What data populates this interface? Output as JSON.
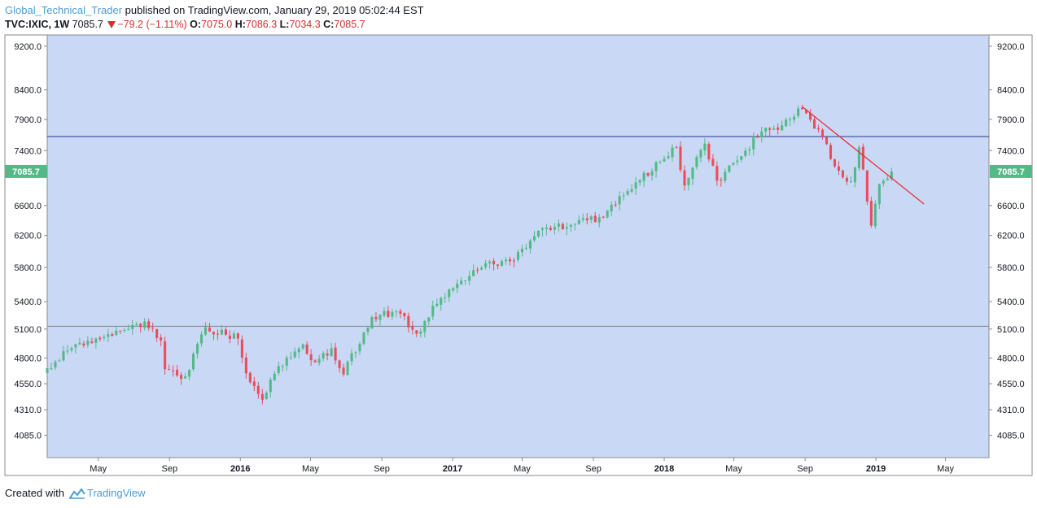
{
  "header": {
    "author": "Global_Technical_Trader",
    "published": "published on TradingView.com, January 29, 2019 05:02:44 EST",
    "symbol": "TVC:IXIC, 1W",
    "last": "7085.7",
    "change": "−79.2 (−1.11%)",
    "o_label": "O:",
    "o_value": "7075.0",
    "h_label": "H:",
    "h_value": "7086.3",
    "l_label": "L:",
    "l_value": "7034.3",
    "c_label": "C:",
    "c_value": "7085.7"
  },
  "footer": {
    "created_with": "Created with",
    "brand": "TradingView"
  },
  "colors": {
    "background": "#c9d9f5",
    "up": "#53b987",
    "down": "#eb4d5c",
    "resistance_line": "#2a3590",
    "support_line": "#808080",
    "trendline": "#e8303a",
    "price_badge": "#53b987"
  },
  "chart_data": {
    "type": "candlestick",
    "title": "",
    "ylim": [
      3900,
      9420
    ],
    "y_ticks": [
      "9200.0",
      "8400.0",
      "7900.0",
      "7400.0",
      "6600.0",
      "6200.0",
      "5800.0",
      "5400.0",
      "5100.0",
      "4800.0",
      "4550.0",
      "4310.0",
      "4085.0"
    ],
    "y_tick_values": [
      9200,
      8400,
      7900,
      7400,
      6600,
      6200,
      5800,
      5400,
      5100,
      4800,
      4550,
      4310,
      4085
    ],
    "x_ticks": [
      {
        "label": "May",
        "date": "2015-05-01",
        "year": false
      },
      {
        "label": "Sep",
        "date": "2015-09-01",
        "year": false
      },
      {
        "label": "2016",
        "date": "2016-01-01",
        "year": true
      },
      {
        "label": "May",
        "date": "2016-05-01",
        "year": false
      },
      {
        "label": "Sep",
        "date": "2016-09-01",
        "year": false
      },
      {
        "label": "2017",
        "date": "2017-01-01",
        "year": true
      },
      {
        "label": "May",
        "date": "2017-05-01",
        "year": false
      },
      {
        "label": "Sep",
        "date": "2017-09-01",
        "year": false
      },
      {
        "label": "2018",
        "date": "2018-01-01",
        "year": true
      },
      {
        "label": "May",
        "date": "2018-05-01",
        "year": false
      },
      {
        "label": "Sep",
        "date": "2018-09-01",
        "year": false
      },
      {
        "label": "2019",
        "date": "2019-01-01",
        "year": true
      },
      {
        "label": "May",
        "date": "2019-05-01",
        "year": false
      }
    ],
    "x_range": [
      "2015-02-02",
      "2019-07-15"
    ],
    "last_price": 7085.7,
    "last_price_label": "7085.7",
    "horizontal_lines": [
      {
        "name": "resistance",
        "value": 7620
      },
      {
        "name": "support",
        "value": 5130
      }
    ],
    "trendline": {
      "start": {
        "date": "2018-08-27",
        "value": 8110
      },
      "end": {
        "date": "2019-03-25",
        "value": 6620
      }
    },
    "anchors": [
      {
        "date": "2015-02-02",
        "value": 4700
      },
      {
        "date": "2015-03-16",
        "value": 4900
      },
      {
        "date": "2015-04-27",
        "value": 5000
      },
      {
        "date": "2015-06-22",
        "value": 5100
      },
      {
        "date": "2015-07-20",
        "value": 5180
      },
      {
        "date": "2015-08-17",
        "value": 4980
      },
      {
        "date": "2015-08-24",
        "value": 4690
      },
      {
        "date": "2015-09-28",
        "value": 4620
      },
      {
        "date": "2015-11-02",
        "value": 5120
      },
      {
        "date": "2015-12-07",
        "value": 5040
      },
      {
        "date": "2015-12-28",
        "value": 5000
      },
      {
        "date": "2016-01-11",
        "value": 4650
      },
      {
        "date": "2016-02-08",
        "value": 4400
      },
      {
        "date": "2016-03-07",
        "value": 4720
      },
      {
        "date": "2016-04-18",
        "value": 4940
      },
      {
        "date": "2016-05-09",
        "value": 4760
      },
      {
        "date": "2016-06-06",
        "value": 4900
      },
      {
        "date": "2016-06-27",
        "value": 4640
      },
      {
        "date": "2016-08-15",
        "value": 5230
      },
      {
        "date": "2016-09-26",
        "value": 5290
      },
      {
        "date": "2016-10-31",
        "value": 5050
      },
      {
        "date": "2016-12-12",
        "value": 5440
      },
      {
        "date": "2017-02-27",
        "value": 5850
      },
      {
        "date": "2017-04-17",
        "value": 5880
      },
      {
        "date": "2017-06-05",
        "value": 6290
      },
      {
        "date": "2017-07-31",
        "value": 6350
      },
      {
        "date": "2017-09-11",
        "value": 6440
      },
      {
        "date": "2017-10-30",
        "value": 6800
      },
      {
        "date": "2018-01-22",
        "value": 7450
      },
      {
        "date": "2018-02-05",
        "value": 6880
      },
      {
        "date": "2018-03-12",
        "value": 7510
      },
      {
        "date": "2018-04-02",
        "value": 6950
      },
      {
        "date": "2018-05-21",
        "value": 7400
      },
      {
        "date": "2018-06-18",
        "value": 7700
      },
      {
        "date": "2018-07-23",
        "value": 7800
      },
      {
        "date": "2018-08-27",
        "value": 8070
      },
      {
        "date": "2018-10-08",
        "value": 7500
      },
      {
        "date": "2018-10-22",
        "value": 7160
      },
      {
        "date": "2018-11-19",
        "value": 6940
      },
      {
        "date": "2018-12-03",
        "value": 7450
      },
      {
        "date": "2018-12-24",
        "value": 6330
      },
      {
        "date": "2019-01-07",
        "value": 6900
      },
      {
        "date": "2019-01-28",
        "value": 7085.7
      }
    ]
  }
}
